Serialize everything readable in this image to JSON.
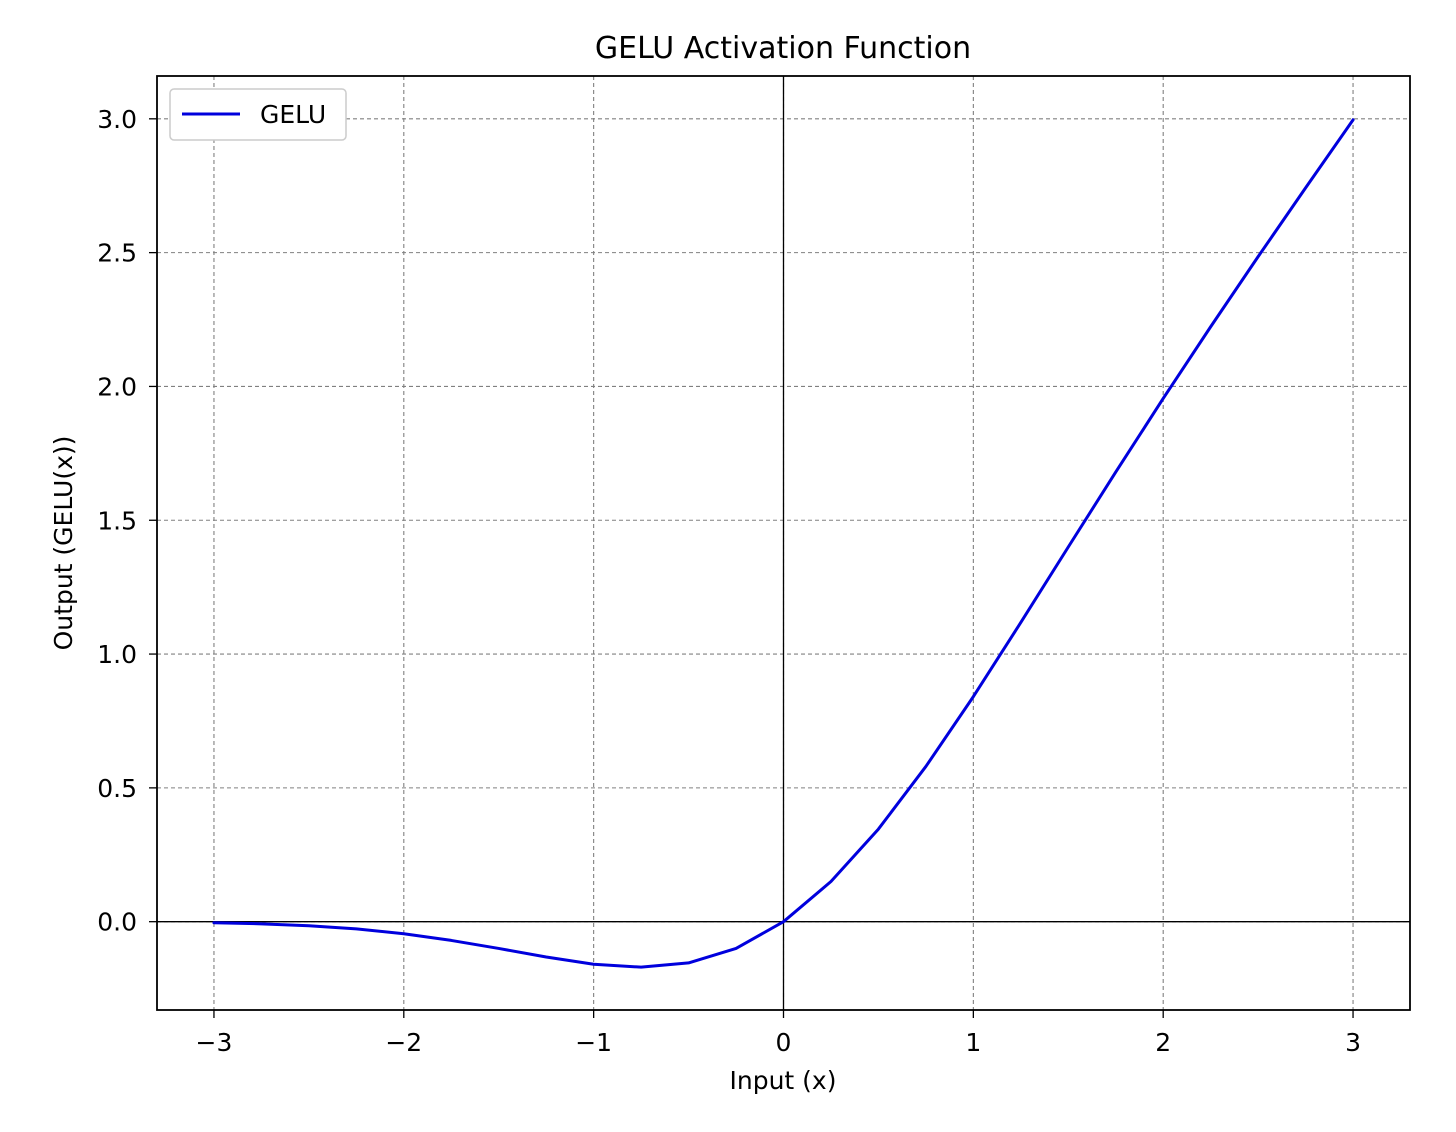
{
  "chart_data": {
    "type": "line",
    "title": "GELU Activation Function",
    "xlabel": "Input (x)",
    "ylabel": "Output (GELU(x))",
    "xlim": [
      -3.3,
      3.3
    ],
    "ylim": [
      -0.33,
      3.16
    ],
    "xticks": [
      -3,
      -2,
      -1,
      0,
      1,
      2,
      3
    ],
    "xtick_labels": [
      "−3",
      "−2",
      "−1",
      "0",
      "1",
      "2",
      "3"
    ],
    "yticks": [
      0.0,
      0.5,
      1.0,
      1.5,
      2.0,
      2.5,
      3.0
    ],
    "ytick_labels": [
      "0.0",
      "0.5",
      "1.0",
      "1.5",
      "2.0",
      "2.5",
      "3.0"
    ],
    "grid": true,
    "reference_lines": {
      "x": 0,
      "y": 0
    },
    "legend": {
      "position": "top-left"
    },
    "series": [
      {
        "name": "GELU",
        "color": "#0000dd",
        "x": [
          -3.0,
          -2.75,
          -2.5,
          -2.25,
          -2.0,
          -1.75,
          -1.5,
          -1.25,
          -1.0,
          -0.75,
          -0.5,
          -0.25,
          0.0,
          0.25,
          0.5,
          0.75,
          1.0,
          1.25,
          1.5,
          1.75,
          2.0,
          2.25,
          2.5,
          2.75,
          3.0
        ],
        "y": [
          -0.004,
          -0.008,
          -0.015,
          -0.027,
          -0.045,
          -0.07,
          -0.1,
          -0.132,
          -0.159,
          -0.17,
          -0.154,
          -0.1,
          0.0,
          0.15,
          0.346,
          0.58,
          0.841,
          1.118,
          1.4,
          1.68,
          1.955,
          2.223,
          2.485,
          2.742,
          2.996
        ]
      }
    ]
  }
}
